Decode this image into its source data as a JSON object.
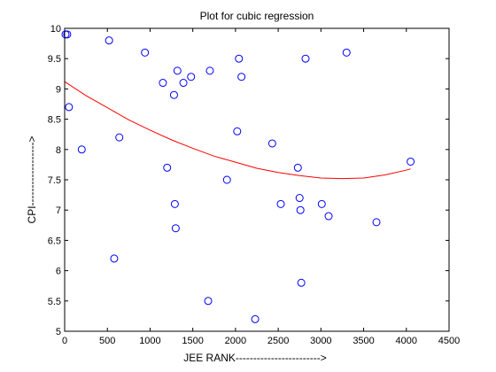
{
  "chart_data": {
    "type": "scatter",
    "title": "Plot for cubic regression",
    "xlabel": "JEE RANK------------------------>",
    "ylabel": "CPI------------------>",
    "xlim": [
      0,
      4500
    ],
    "ylim": [
      5,
      10
    ],
    "xticks": [
      0,
      500,
      1000,
      1500,
      2000,
      2500,
      3000,
      3500,
      4000,
      4500
    ],
    "yticks": [
      5,
      5.5,
      6,
      6.5,
      7,
      7.5,
      8,
      8.5,
      9,
      9.5,
      10
    ],
    "grid": false,
    "marker_color": "#0000ff",
    "curve_color": "#ff0000",
    "points": [
      {
        "x": 10,
        "y": 9.9
      },
      {
        "x": 30,
        "y": 9.9
      },
      {
        "x": 50,
        "y": 8.7
      },
      {
        "x": 200,
        "y": 8.0
      },
      {
        "x": 520,
        "y": 9.8
      },
      {
        "x": 580,
        "y": 6.2
      },
      {
        "x": 640,
        "y": 8.2
      },
      {
        "x": 940,
        "y": 9.6
      },
      {
        "x": 1150,
        "y": 9.1
      },
      {
        "x": 1200,
        "y": 7.7
      },
      {
        "x": 1280,
        "y": 8.9
      },
      {
        "x": 1290,
        "y": 7.1
      },
      {
        "x": 1300,
        "y": 6.7
      },
      {
        "x": 1320,
        "y": 9.3
      },
      {
        "x": 1390,
        "y": 9.1
      },
      {
        "x": 1480,
        "y": 9.2
      },
      {
        "x": 1680,
        "y": 5.5
      },
      {
        "x": 1700,
        "y": 9.3
      },
      {
        "x": 1900,
        "y": 7.5
      },
      {
        "x": 2020,
        "y": 8.3
      },
      {
        "x": 2040,
        "y": 9.5
      },
      {
        "x": 2070,
        "y": 9.2
      },
      {
        "x": 2230,
        "y": 5.2
      },
      {
        "x": 2430,
        "y": 8.1
      },
      {
        "x": 2530,
        "y": 7.1
      },
      {
        "x": 2730,
        "y": 7.7
      },
      {
        "x": 2750,
        "y": 7.2
      },
      {
        "x": 2760,
        "y": 7.0
      },
      {
        "x": 2770,
        "y": 5.8
      },
      {
        "x": 2820,
        "y": 9.5
      },
      {
        "x": 3010,
        "y": 7.1
      },
      {
        "x": 3090,
        "y": 6.9
      },
      {
        "x": 3300,
        "y": 9.6
      },
      {
        "x": 3650,
        "y": 6.8
      },
      {
        "x": 4050,
        "y": 7.8
      }
    ],
    "fit_curve": {
      "x": [
        0,
        250,
        500,
        750,
        1000,
        1250,
        1500,
        1750,
        2000,
        2250,
        2500,
        2750,
        3000,
        3250,
        3500,
        3750,
        4000,
        4050
      ],
      "y": [
        9.12,
        8.89,
        8.69,
        8.49,
        8.32,
        8.16,
        8.02,
        7.89,
        7.79,
        7.69,
        7.62,
        7.57,
        7.53,
        7.52,
        7.53,
        7.58,
        7.66,
        7.68
      ]
    }
  }
}
